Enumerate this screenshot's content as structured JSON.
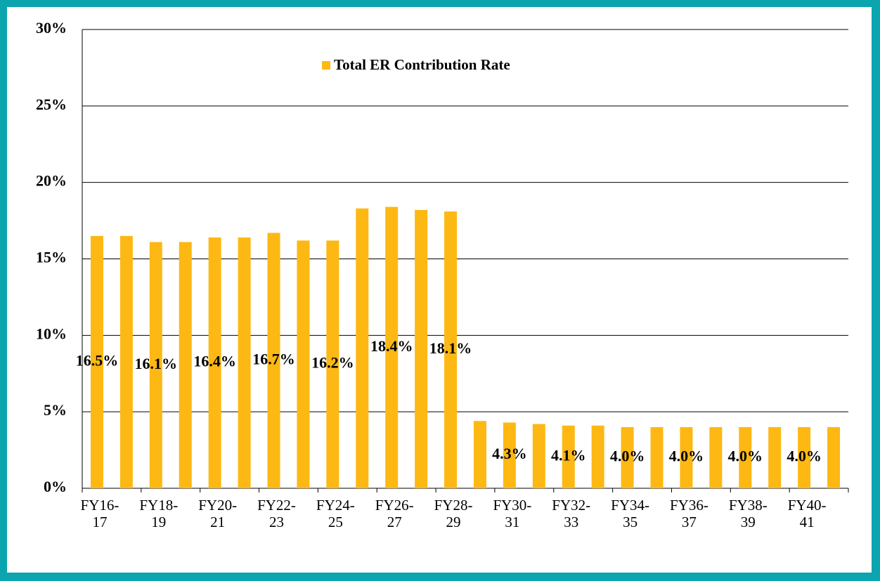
{
  "chart_data": {
    "type": "bar",
    "categories": [
      "FY16-17",
      null,
      "FY18-19",
      null,
      "FY20-21",
      null,
      "FY22-23",
      null,
      "FY24-25",
      null,
      "FY26-27",
      null,
      "FY28-29",
      null,
      "FY30-31",
      null,
      "FY32-33",
      null,
      "FY34-35",
      null,
      "FY36-37",
      null,
      "FY38-39",
      null,
      "FY40-41",
      null
    ],
    "series": [
      {
        "name": "Total ER Contribution Rate",
        "color": "#fdb813",
        "values": [
          16.5,
          16.5,
          16.1,
          16.1,
          16.4,
          16.4,
          16.7,
          16.2,
          16.2,
          18.3,
          18.4,
          18.2,
          18.1,
          4.4,
          4.3,
          4.2,
          4.1,
          4.1,
          4.0,
          4.0,
          4.0,
          4.0,
          4.0,
          4.0,
          4.0,
          4.0
        ],
        "value_labels": [
          "16.5%",
          null,
          "16.1%",
          null,
          "16.4%",
          null,
          "16.7%",
          null,
          "16.2%",
          null,
          "18.4%",
          null,
          "18.1%",
          null,
          "4.3%",
          null,
          "4.1%",
          null,
          "4.0%",
          null,
          "4.0%",
          null,
          "4.0%",
          null,
          "4.0%",
          null
        ]
      }
    ],
    "ylim": [
      0,
      30
    ],
    "yticks": [
      {
        "value": 0,
        "label": "0%"
      },
      {
        "value": 5,
        "label": "5%"
      },
      {
        "value": 10,
        "label": "10%"
      },
      {
        "value": 15,
        "label": "15%"
      },
      {
        "value": 20,
        "label": "20%"
      },
      {
        "value": 25,
        "label": "25%"
      },
      {
        "value": 30,
        "label": "30%"
      }
    ],
    "grid": true,
    "legend": "top"
  }
}
